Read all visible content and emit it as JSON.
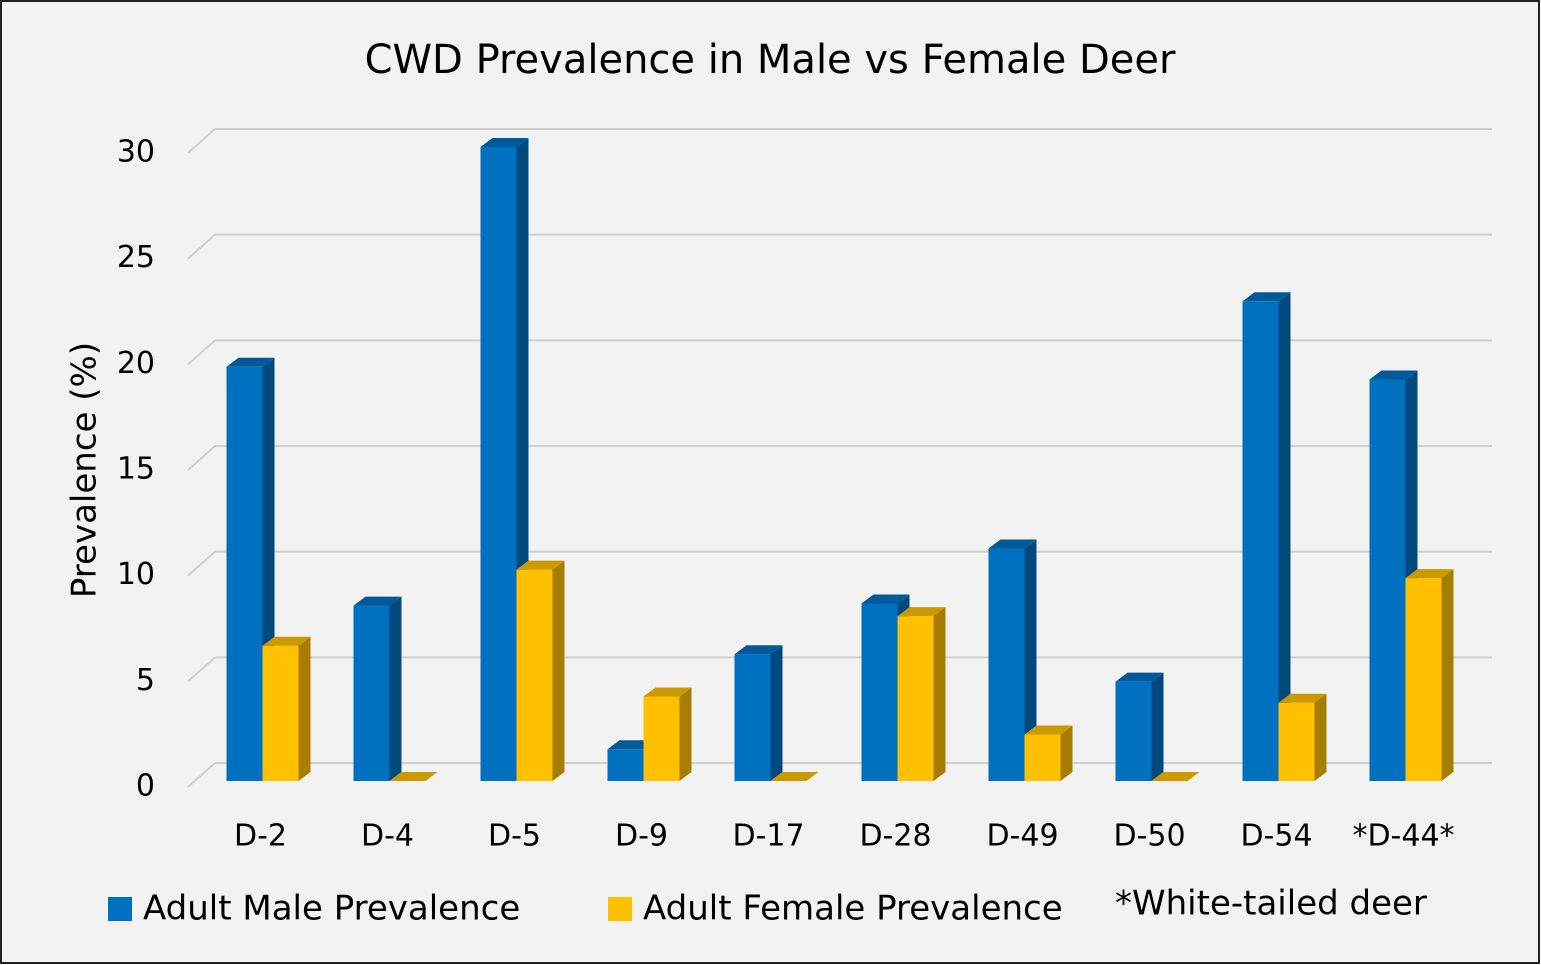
{
  "chart_data": {
    "type": "bar3d",
    "title": "CWD Prevalence in Male vs Female Deer",
    "y_label": "Prevalence (%)",
    "categories": [
      "D-2",
      "D-4",
      "D-5",
      "D-9",
      "D-17",
      "D-28",
      "D-49",
      "D-50",
      "D-54",
      "*D-44*"
    ],
    "series": [
      {
        "name": "Adult Male Prevalence",
        "color": "#0070c0",
        "values": [
          19.6,
          8.3,
          30,
          1.5,
          6.0,
          8.4,
          11.0,
          4.7,
          22.7,
          19.0
        ]
      },
      {
        "name": "Adult Female Prevalence",
        "color": "#ffc000",
        "values": [
          6.4,
          0,
          10.0,
          4.0,
          0,
          7.8,
          2.2,
          0,
          3.7,
          9.6
        ]
      }
    ],
    "annotation": "*White-tailed deer",
    "ylim": [
      0,
      30
    ],
    "yticks": [
      0,
      5,
      10,
      15,
      20,
      25,
      30
    ],
    "grid": true
  }
}
